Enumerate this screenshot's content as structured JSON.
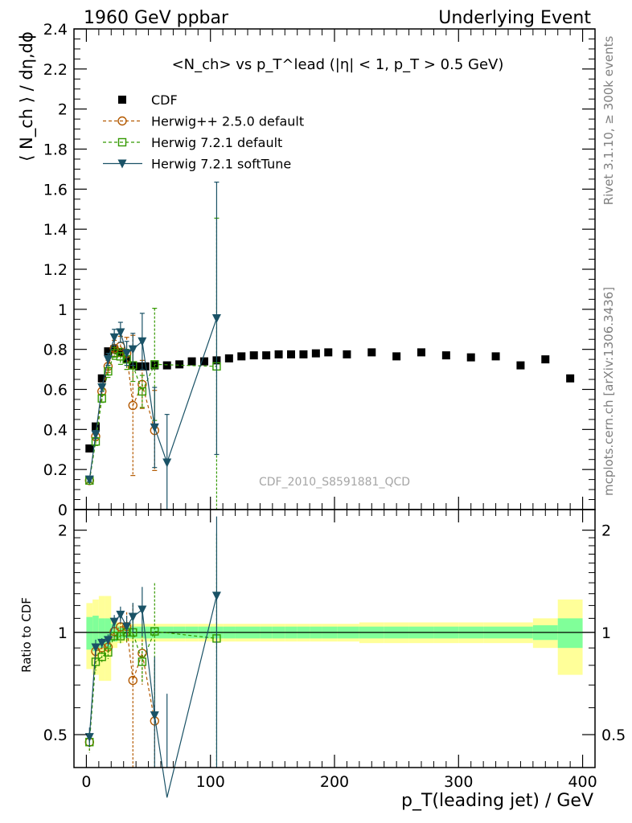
{
  "header": {
    "left": "1960 GeV ppbar",
    "right": "Underlying Event"
  },
  "side": {
    "rivet": "Rivet 3.1.10, ≥ 300k events",
    "mcplots": "mcplots.cern.ch [arXiv:1306.3436]"
  },
  "watermark": "CDF_2010_S8591881_QCD",
  "chart_data": {
    "type": "scatter",
    "title": "<N_ch> vs p_T^lead (|η| < 1, p_T > 0.5 GeV)",
    "ylabel": "⟨ N_ch ⟩ / dη,dϕ",
    "xlabel": "p_T(leading jet) / GeV",
    "ratio_ylabel": "Ratio to CDF",
    "xlim": [
      -10,
      410
    ],
    "ylim": [
      0,
      2.4
    ],
    "ratio_ylim": [
      0.4,
      2.3
    ],
    "x_ticks": [
      "0",
      "100",
      "200",
      "300",
      "400"
    ],
    "y_ticks": [
      "0",
      "0.2",
      "0.4",
      "0.6",
      "0.8",
      "1",
      "1.2",
      "1.4",
      "1.6",
      "1.8",
      "2",
      "2.2",
      "2.4"
    ],
    "ratio_ticks": [
      "0.5",
      "1",
      "2"
    ],
    "series": [
      {
        "name": "CDF",
        "x": [
          2.5,
          7.5,
          12.5,
          17.5,
          22.5,
          27.5,
          32.5,
          37.5,
          42.5,
          47.5,
          55,
          65,
          75,
          85,
          95,
          105,
          115,
          125,
          135,
          145,
          155,
          165,
          175,
          185,
          195,
          210,
          230,
          250,
          270,
          290,
          310,
          330,
          350,
          370,
          390
        ],
        "y": [
          0.305,
          0.415,
          0.655,
          0.79,
          0.8,
          0.785,
          0.75,
          0.72,
          0.715,
          0.715,
          0.72,
          0.72,
          0.725,
          0.74,
          0.74,
          0.745,
          0.755,
          0.765,
          0.77,
          0.77,
          0.775,
          0.775,
          0.775,
          0.78,
          0.785,
          0.775,
          0.785,
          0.765,
          0.785,
          0.77,
          0.76,
          0.765,
          0.72,
          0.75,
          0.655
        ],
        "yerr": [
          0.01,
          0.01,
          0.01,
          0.01,
          0.01,
          0.01,
          0.01,
          0.01,
          0.01,
          0.01,
          0.01,
          0.01,
          0.01,
          0.01,
          0.01,
          0.01,
          0.01,
          0.01,
          0.01,
          0.01,
          0.01,
          0.01,
          0.01,
          0.01,
          0.01,
          0.01,
          0.01,
          0.01,
          0.01,
          0.01,
          0.01,
          0.01,
          0.01,
          0.01,
          0.01
        ],
        "ratio_band_inner": [
          0.11,
          0.12,
          0.1,
          0.1,
          0.06,
          0.04,
          0.04,
          0.04,
          0.04,
          0.04,
          0.04,
          0.04,
          0.04,
          0.04,
          0.04,
          0.04,
          0.04,
          0.04,
          0.04,
          0.04,
          0.04,
          0.04,
          0.04,
          0.04,
          0.04,
          0.04,
          0.04,
          0.04,
          0.04,
          0.04,
          0.04,
          0.04,
          0.04,
          0.05,
          0.1
        ],
        "ratio_band_outer": [
          0.22,
          0.25,
          0.28,
          0.28,
          0.1,
          0.07,
          0.06,
          0.06,
          0.06,
          0.06,
          0.06,
          0.06,
          0.06,
          0.06,
          0.06,
          0.06,
          0.06,
          0.06,
          0.06,
          0.06,
          0.06,
          0.06,
          0.06,
          0.06,
          0.06,
          0.06,
          0.07,
          0.07,
          0.07,
          0.07,
          0.07,
          0.07,
          0.07,
          0.1,
          0.25
        ],
        "color": "#000000",
        "marker": "square"
      },
      {
        "name": "Herwig++ 2.5.0 default",
        "x": [
          2.5,
          7.5,
          12.5,
          17.5,
          22.5,
          27.5,
          32.5,
          37.5,
          45,
          55
        ],
        "y": [
          0.145,
          0.365,
          0.59,
          0.715,
          0.805,
          0.815,
          0.78,
          0.52,
          0.625,
          0.395
        ],
        "yerr": [
          0.01,
          0.02,
          0.02,
          0.03,
          0.04,
          0.05,
          0.08,
          0.35,
          0.12,
          0.2
        ],
        "color": "#b35900",
        "marker": "circle-open",
        "dash": true
      },
      {
        "name": "Herwig 7.2.1 default",
        "x": [
          2.5,
          7.5,
          12.5,
          17.5,
          22.5,
          27.5,
          32.5,
          37.5,
          45,
          55,
          105
        ],
        "y": [
          0.145,
          0.34,
          0.555,
          0.69,
          0.78,
          0.765,
          0.75,
          0.72,
          0.59,
          0.725,
          0.715
        ],
        "yerr": [
          0.01,
          0.02,
          0.02,
          0.03,
          0.03,
          0.04,
          0.05,
          0.08,
          0.08,
          0.28,
          0.74
        ],
        "color": "#339900",
        "marker": "square-open",
        "dash": true
      },
      {
        "name": "Herwig 7.2.1 softTune",
        "x": [
          2.5,
          7.5,
          12.5,
          17.5,
          22.5,
          27.5,
          32.5,
          37.5,
          45,
          55,
          65,
          105
        ],
        "y": [
          0.15,
          0.375,
          0.61,
          0.75,
          0.86,
          0.885,
          0.78,
          0.8,
          0.84,
          0.41,
          0.235,
          0.955
        ],
        "yerr": [
          0.01,
          0.02,
          0.02,
          0.03,
          0.04,
          0.05,
          0.06,
          0.08,
          0.14,
          0.2,
          0.24,
          0.68
        ],
        "color": "#1a5266",
        "marker": "triangle-down",
        "dash": false
      }
    ]
  }
}
